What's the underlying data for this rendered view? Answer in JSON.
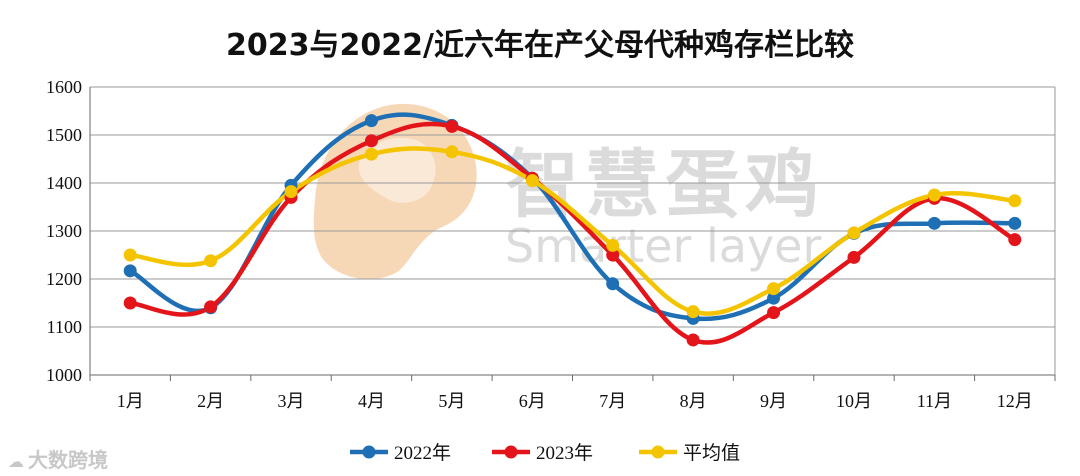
{
  "chart_data": {
    "type": "line",
    "title": "2023与2022/近六年在产父母代种鸡存栏比较",
    "xlabel": "",
    "ylabel": "",
    "categories": [
      "1月",
      "2月",
      "3月",
      "4月",
      "5月",
      "6月",
      "7月",
      "8月",
      "9月",
      "10月",
      "11月",
      "12月"
    ],
    "ylim": [
      1000,
      1600
    ],
    "yticks": [
      1000,
      1100,
      1200,
      1300,
      1400,
      1500,
      1600
    ],
    "grid": true,
    "legend_position": "bottom",
    "series": [
      {
        "name": "2022年",
        "color": "#1f6fb5",
        "values": [
          1217,
          1140,
          1395,
          1530,
          1520,
          1410,
          1190,
          1118,
          1160,
          1295,
          1316,
          1316
        ]
      },
      {
        "name": "2023年",
        "color": "#e3141a",
        "values": [
          1150,
          1142,
          1370,
          1488,
          1518,
          1410,
          1250,
          1073,
          1130,
          1245,
          1368,
          1282
        ]
      },
      {
        "name": "平均值",
        "color": "#f5c400",
        "values": [
          1250,
          1238,
          1382,
          1460,
          1465,
          1405,
          1270,
          1132,
          1180,
          1296,
          1375,
          1363
        ]
      }
    ]
  },
  "watermark": {
    "chinese": "智慧蛋鸡",
    "english": "Smarter layer"
  },
  "corner_logo": {
    "text": "大数跨境",
    "icon": "cloud-logo-icon"
  }
}
